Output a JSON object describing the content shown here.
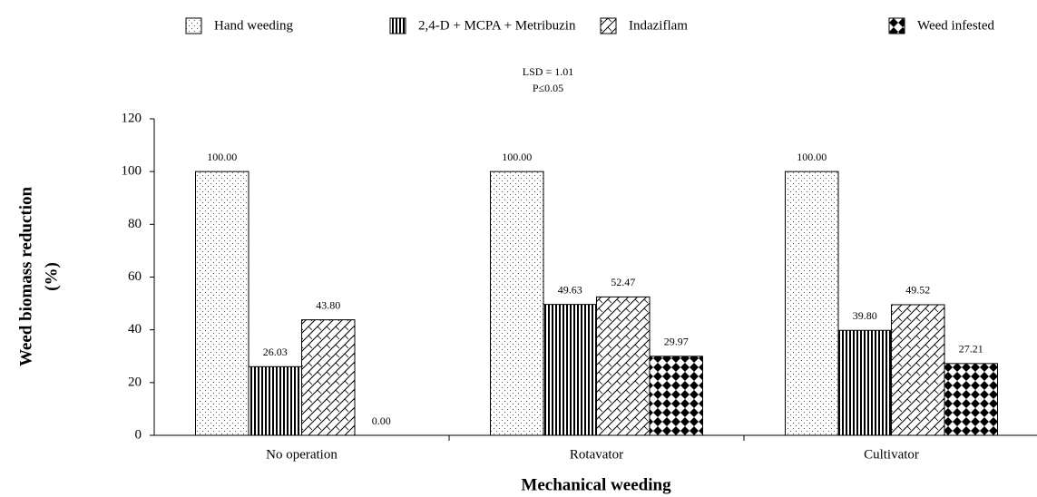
{
  "chart_data": {
    "type": "bar",
    "annotations": [
      "LSD = 1.01",
      "P≤0.05"
    ],
    "xlabel": "Mechanical weeding",
    "ylabel": [
      "Weed biomass reduction",
      "(%)"
    ],
    "categories": [
      "No operation",
      "Rotavator",
      "Cultivator"
    ],
    "series": [
      {
        "name": "Hand weeding",
        "color": "#000000",
        "values": [
          100,
          100,
          100
        ],
        "value_labels": [
          "100.00",
          "100.00",
          "100.00"
        ]
      },
      {
        "name": "2,4-D + MCPA + Metribuzin",
        "color": "#000000",
        "values": [
          26.03,
          49.63,
          39.8
        ],
        "value_labels": [
          "26.03",
          "49.63",
          "39.80"
        ]
      },
      {
        "name": "Indaziflam",
        "color": "#000000",
        "values": [
          43.8,
          52.47,
          49.52
        ],
        "value_labels": [
          "43.80",
          "52.47",
          "49.52"
        ]
      },
      {
        "name": "Weed infested",
        "color": "#000000",
        "values": [
          0,
          29.97,
          27.21
        ],
        "value_labels": [
          "0.00",
          "29.97",
          "27.21"
        ]
      }
    ],
    "ylim": [
      0,
      120
    ],
    "yticks": [
      0,
      20,
      40,
      60,
      80,
      100,
      120
    ],
    "legend": "top",
    "grid": false
  }
}
